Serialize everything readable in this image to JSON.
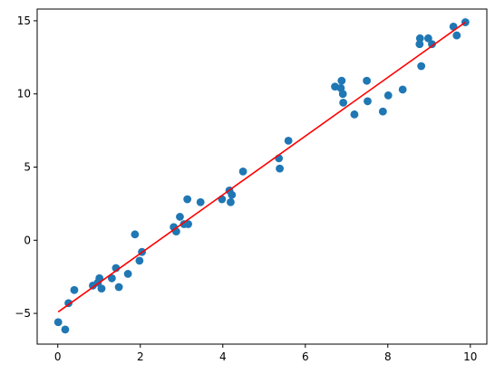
{
  "chart_data": {
    "type": "scatter",
    "title": "",
    "xlabel": "",
    "ylabel": "",
    "xlim": [
      -0.5,
      10.4
    ],
    "ylim": [
      -7.1,
      15.8
    ],
    "x_ticks": [
      0,
      2,
      4,
      6,
      8,
      10
    ],
    "y_ticks": [
      -5,
      0,
      5,
      10,
      15
    ],
    "x_tick_labels": [
      "0",
      "2",
      "4",
      "6",
      "8",
      "10"
    ],
    "y_tick_labels": [
      "−5",
      "0",
      "5",
      "10",
      "15"
    ],
    "grid": false,
    "legend": "none",
    "colors": {
      "points": "#1f77b4",
      "fit_line": "#ff0000"
    },
    "series": [
      {
        "kind": "points",
        "x": [
          0.01,
          0.18,
          0.26,
          0.4,
          0.85,
          0.97,
          1.01,
          1.06,
          1.31,
          1.41,
          1.48,
          1.7,
          1.87,
          1.98,
          2.04,
          2.81,
          2.87,
          2.96,
          3.06,
          3.14,
          3.16,
          3.46,
          3.98,
          4.16,
          4.19,
          4.22,
          4.49,
          5.36,
          5.38,
          5.59,
          6.72,
          6.86,
          6.88,
          6.91,
          6.92,
          7.19,
          7.49,
          7.51,
          7.88,
          8.01,
          8.36,
          8.77,
          8.78,
          8.81,
          8.98,
          9.07,
          9.59,
          9.67,
          9.88
        ],
        "y": [
          -5.6,
          -6.1,
          -4.3,
          -3.4,
          -3.1,
          -2.9,
          -2.6,
          -3.3,
          -2.6,
          -1.9,
          -3.2,
          -2.3,
          0.4,
          -1.4,
          -0.8,
          0.9,
          0.6,
          1.6,
          1.1,
          2.8,
          1.1,
          2.6,
          2.8,
          3.4,
          2.6,
          3.1,
          4.7,
          5.6,
          4.9,
          6.8,
          10.5,
          10.4,
          10.9,
          10.0,
          9.4,
          8.6,
          10.9,
          9.5,
          8.8,
          9.9,
          10.3,
          13.4,
          13.8,
          11.9,
          13.8,
          13.4,
          14.6,
          14.0,
          14.9
        ]
      },
      {
        "kind": "fit-line",
        "x": [
          0.01,
          9.88
        ],
        "y": [
          -4.9,
          14.9
        ]
      }
    ]
  }
}
